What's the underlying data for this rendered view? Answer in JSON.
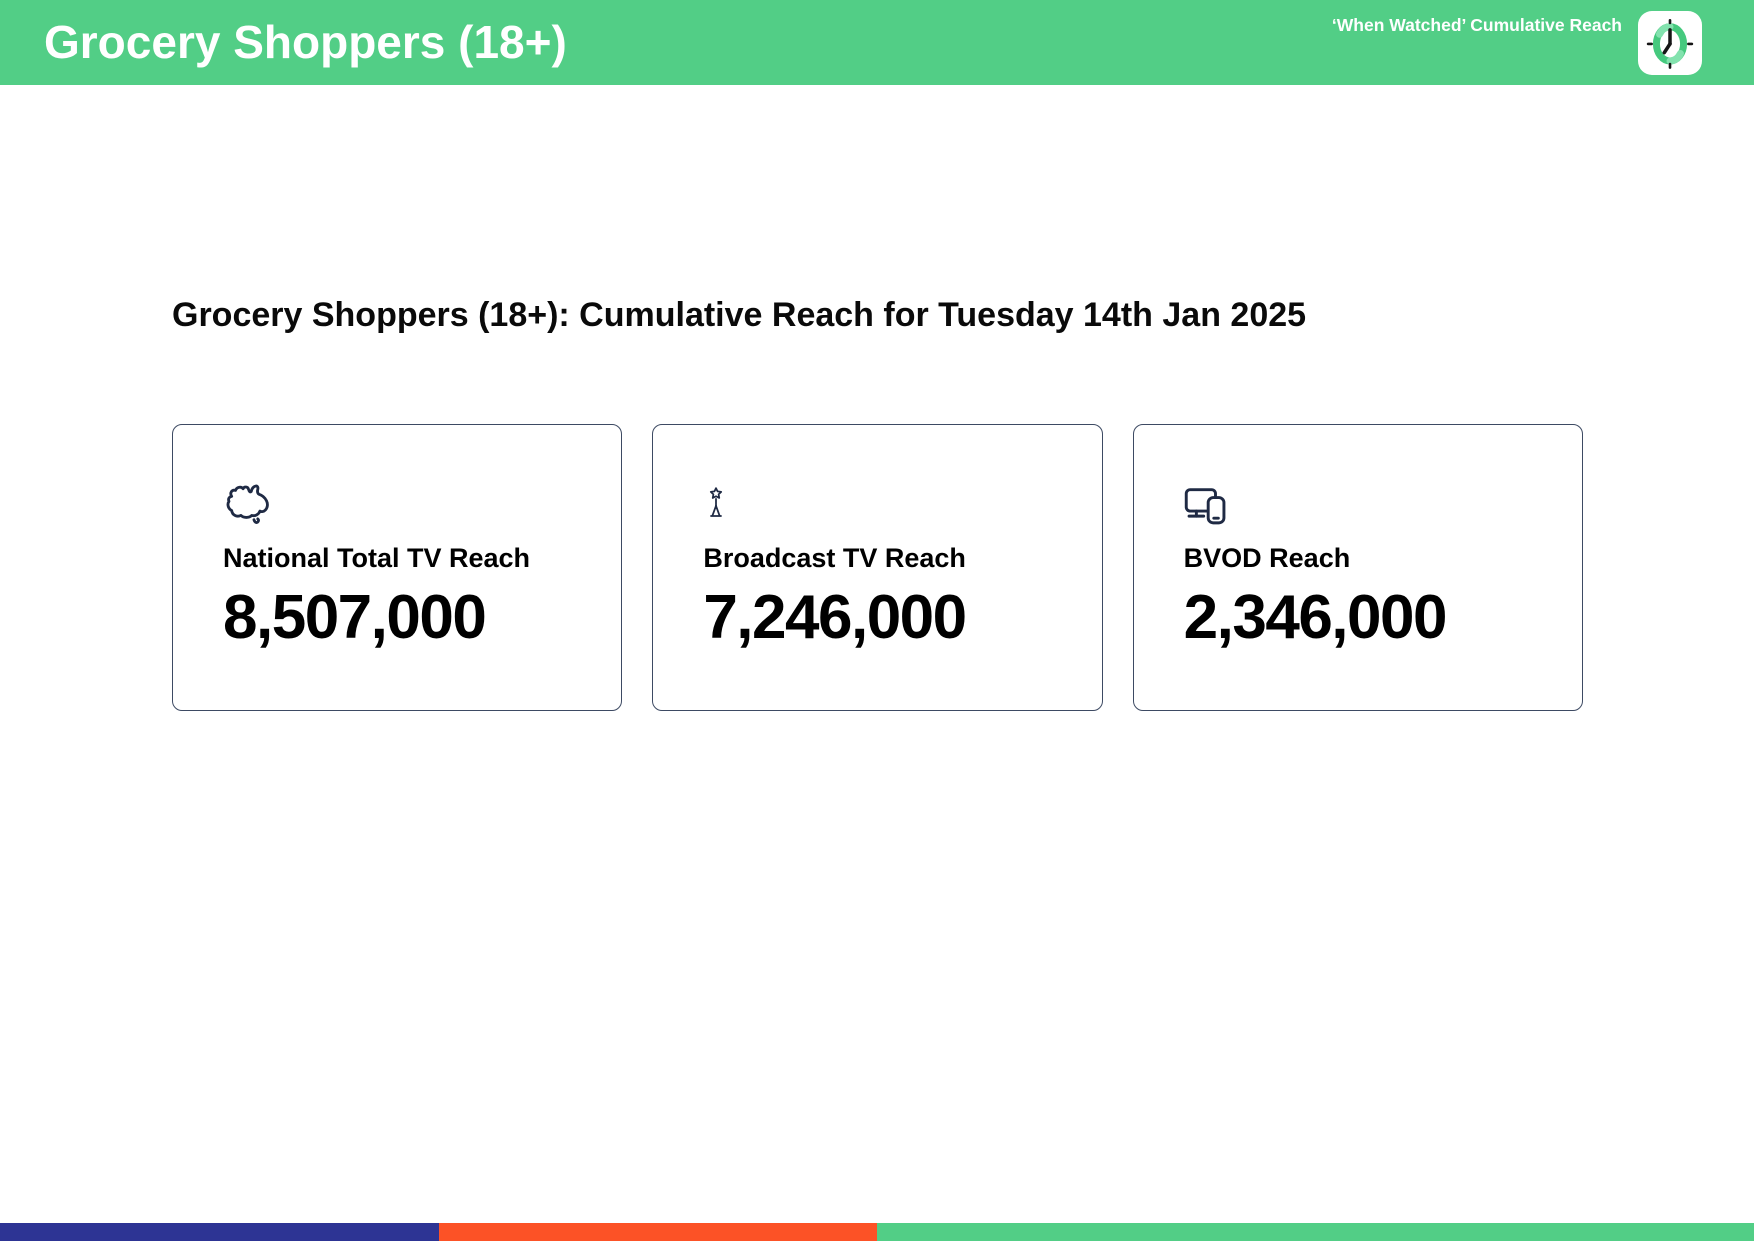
{
  "header": {
    "title": "Grocery Shoppers (18+)",
    "tagline": "‘When Watched’ Cumulative Reach",
    "logo_icon": "clock-icon"
  },
  "main": {
    "heading": "Grocery Shoppers (18+): Cumulative Reach for Tuesday 14th Jan 2025",
    "cards": [
      {
        "icon": "australia-map-icon",
        "label": "National Total TV Reach",
        "value": "8,507,000"
      },
      {
        "icon": "broadcast-tower-icon",
        "label": "Broadcast TV Reach",
        "value": "7,246,000"
      },
      {
        "icon": "devices-icon",
        "label": "BVOD Reach",
        "value": "2,346,000"
      }
    ]
  },
  "footer": {
    "segments": [
      {
        "name": "blue",
        "color": "#2D3494",
        "width_pct": 25
      },
      {
        "name": "orange",
        "color": "#FC5226",
        "width_pct": 25
      },
      {
        "name": "green",
        "color": "#52CE86",
        "width_pct": 50
      }
    ]
  },
  "colors": {
    "header-green": "#52CE86",
    "icon-navy": "#1F2A44",
    "card-border": "#3D4A63",
    "text-black": "#0A0A0A",
    "white": "#FFFFFF"
  }
}
